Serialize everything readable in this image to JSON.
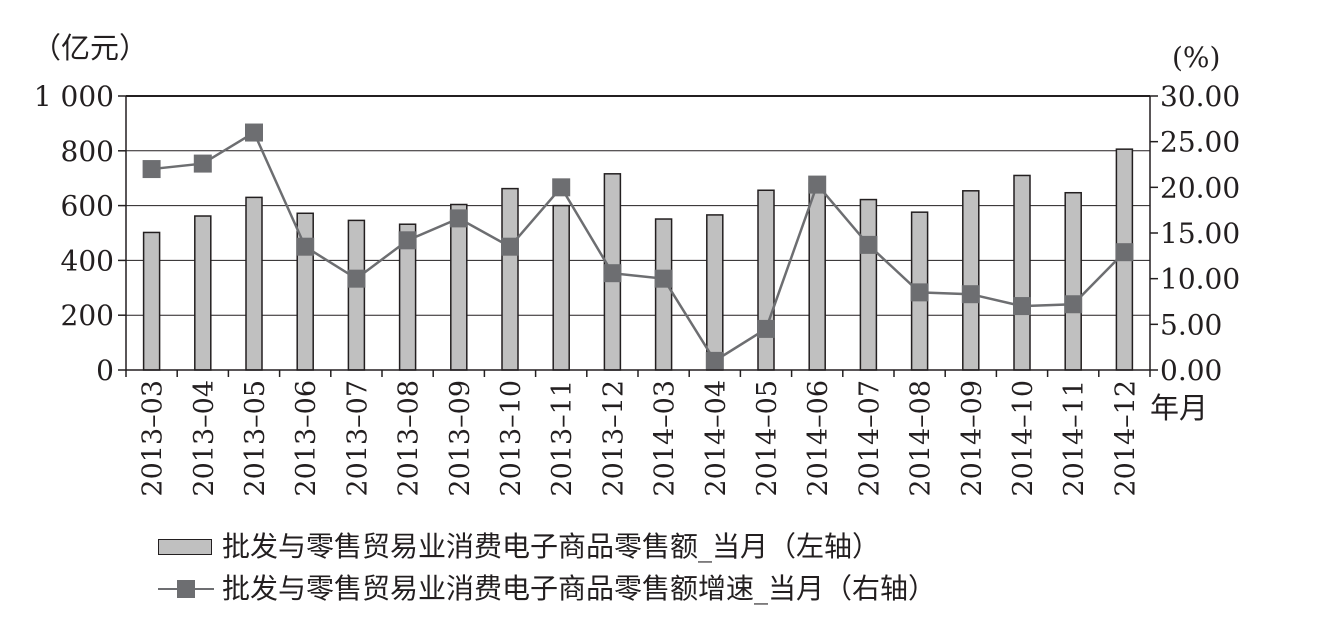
{
  "chart_data": {
    "type": "bar+line",
    "left_axis_unit": "（亿元）",
    "right_axis_unit": "(%)",
    "x_axis_unit": "年月",
    "categories": [
      "2013–03",
      "2013–04",
      "2013–05",
      "2013–06",
      "2013–07",
      "2013–08",
      "2013–09",
      "2013–10",
      "2013–11",
      "2013–12",
      "2014–03",
      "2014–04",
      "2014–05",
      "2014–06",
      "2014–07",
      "2014–08",
      "2014–09",
      "2014–10",
      "2014–11",
      "2014–12"
    ],
    "left_ylim": [
      0,
      1000
    ],
    "left_ticks": [
      0,
      200,
      400,
      600,
      800,
      1000
    ],
    "left_tick_labels": [
      "0",
      "200",
      "400",
      "600",
      "800",
      "1 000"
    ],
    "right_ylim": [
      0,
      30
    ],
    "right_ticks": [
      0,
      5,
      10,
      15,
      20,
      25,
      30
    ],
    "right_tick_labels": [
      "0.00",
      "5.00",
      "10.00",
      "15.00",
      "20.00",
      "25.00",
      "30.00"
    ],
    "grid": true,
    "series": [
      {
        "name": "批发与零售贸易业消费电子商品零售额_当月（左轴）",
        "type": "bar",
        "axis": "left",
        "color": "#c0c0c0",
        "values": [
          502,
          562,
          630,
          572,
          546,
          532,
          604,
          662,
          600,
          716,
          551,
          566,
          656,
          682,
          622,
          576,
          654,
          710,
          647,
          806
        ]
      },
      {
        "name": "批发与零售贸易业消费电子商品零售额增速_当月（右轴）",
        "type": "line",
        "axis": "right",
        "color": "#6d6e71",
        "values": [
          22.0,
          22.6,
          26.0,
          13.5,
          10.0,
          14.2,
          16.6,
          13.5,
          20.0,
          10.6,
          10.0,
          1.0,
          4.5,
          20.3,
          13.7,
          8.5,
          8.3,
          7.0,
          7.2,
          12.9
        ]
      }
    ]
  }
}
